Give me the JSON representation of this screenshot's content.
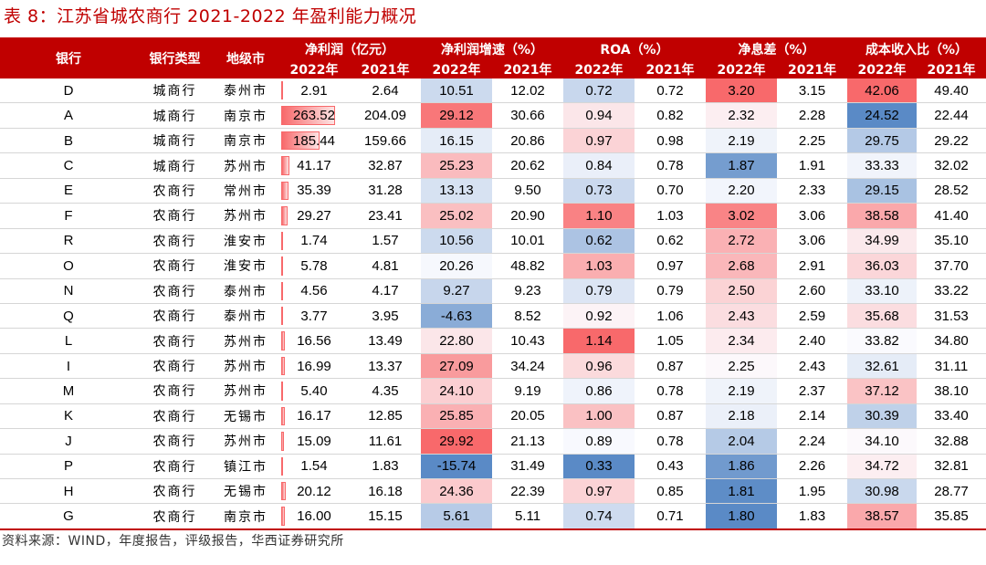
{
  "title": "表 8：江苏省城农商行 2021-2022 年盈利能力概况",
  "header": {
    "bank": "银行",
    "type": "银行类型",
    "city": "地级市",
    "groups": [
      "净利润（亿元）",
      "净利润增速（%）",
      "ROA（%）",
      "净息差（%）",
      "成本收入比（%）"
    ],
    "years": [
      "2022年",
      "2021年"
    ]
  },
  "rows": [
    {
      "bank": "D",
      "type": "城商行",
      "city": "泰州市",
      "np22": "2.91",
      "np21": "2.64",
      "g22": "10.51",
      "g21": "12.02",
      "roa22": "0.72",
      "roa21": "0.72",
      "nim22": "3.20",
      "nim21": "3.15",
      "cir22": "42.06",
      "cir21": "49.40"
    },
    {
      "bank": "A",
      "type": "城商行",
      "city": "南京市",
      "np22": "263.52",
      "np21": "204.09",
      "g22": "29.12",
      "g21": "30.66",
      "roa22": "0.94",
      "roa21": "0.82",
      "nim22": "2.32",
      "nim21": "2.28",
      "cir22": "24.52",
      "cir21": "22.44"
    },
    {
      "bank": "B",
      "type": "城商行",
      "city": "南京市",
      "np22": "185.44",
      "np21": "159.66",
      "g22": "16.15",
      "g21": "20.86",
      "roa22": "0.97",
      "roa21": "0.98",
      "nim22": "2.19",
      "nim21": "2.25",
      "cir22": "29.75",
      "cir21": "29.22"
    },
    {
      "bank": "C",
      "type": "城商行",
      "city": "苏州市",
      "np22": "41.17",
      "np21": "32.87",
      "g22": "25.23",
      "g21": "20.62",
      "roa22": "0.84",
      "roa21": "0.78",
      "nim22": "1.87",
      "nim21": "1.91",
      "cir22": "33.33",
      "cir21": "32.02"
    },
    {
      "bank": "E",
      "type": "农商行",
      "city": "常州市",
      "np22": "35.39",
      "np21": "31.28",
      "g22": "13.13",
      "g21": "9.50",
      "roa22": "0.73",
      "roa21": "0.70",
      "nim22": "2.20",
      "nim21": "2.33",
      "cir22": "29.15",
      "cir21": "28.52"
    },
    {
      "bank": "F",
      "type": "农商行",
      "city": "苏州市",
      "np22": "29.27",
      "np21": "23.41",
      "g22": "25.02",
      "g21": "20.90",
      "roa22": "1.10",
      "roa21": "1.03",
      "nim22": "3.02",
      "nim21": "3.06",
      "cir22": "38.58",
      "cir21": "41.40"
    },
    {
      "bank": "R",
      "type": "农商行",
      "city": "淮安市",
      "np22": "1.74",
      "np21": "1.57",
      "g22": "10.56",
      "g21": "10.01",
      "roa22": "0.62",
      "roa21": "0.62",
      "nim22": "2.72",
      "nim21": "3.06",
      "cir22": "34.99",
      "cir21": "35.10"
    },
    {
      "bank": "O",
      "type": "农商行",
      "city": "淮安市",
      "np22": "5.78",
      "np21": "4.81",
      "g22": "20.26",
      "g21": "48.82",
      "roa22": "1.03",
      "roa21": "0.97",
      "nim22": "2.68",
      "nim21": "2.91",
      "cir22": "36.03",
      "cir21": "37.70"
    },
    {
      "bank": "N",
      "type": "农商行",
      "city": "泰州市",
      "np22": "4.56",
      "np21": "4.17",
      "g22": "9.27",
      "g21": "9.23",
      "roa22": "0.79",
      "roa21": "0.79",
      "nim22": "2.50",
      "nim21": "2.60",
      "cir22": "33.10",
      "cir21": "33.22"
    },
    {
      "bank": "Q",
      "type": "农商行",
      "city": "泰州市",
      "np22": "3.77",
      "np21": "3.95",
      "g22": "-4.63",
      "g21": "8.52",
      "roa22": "0.92",
      "roa21": "1.06",
      "nim22": "2.43",
      "nim21": "2.59",
      "cir22": "35.68",
      "cir21": "31.53"
    },
    {
      "bank": "L",
      "type": "农商行",
      "city": "苏州市",
      "np22": "16.56",
      "np21": "13.49",
      "g22": "22.80",
      "g21": "10.43",
      "roa22": "1.14",
      "roa21": "1.05",
      "nim22": "2.34",
      "nim21": "2.40",
      "cir22": "33.82",
      "cir21": "34.80"
    },
    {
      "bank": "I",
      "type": "农商行",
      "city": "苏州市",
      "np22": "16.99",
      "np21": "13.37",
      "g22": "27.09",
      "g21": "34.24",
      "roa22": "0.96",
      "roa21": "0.87",
      "nim22": "2.25",
      "nim21": "2.43",
      "cir22": "32.61",
      "cir21": "31.11"
    },
    {
      "bank": "M",
      "type": "农商行",
      "city": "苏州市",
      "np22": "5.40",
      "np21": "4.35",
      "g22": "24.10",
      "g21": "9.19",
      "roa22": "0.86",
      "roa21": "0.78",
      "nim22": "2.19",
      "nim21": "2.37",
      "cir22": "37.12",
      "cir21": "38.10"
    },
    {
      "bank": "K",
      "type": "农商行",
      "city": "无锡市",
      "np22": "16.17",
      "np21": "12.85",
      "g22": "25.85",
      "g21": "20.05",
      "roa22": "1.00",
      "roa21": "0.87",
      "nim22": "2.18",
      "nim21": "2.14",
      "cir22": "30.39",
      "cir21": "33.40"
    },
    {
      "bank": "J",
      "type": "农商行",
      "city": "苏州市",
      "np22": "15.09",
      "np21": "11.61",
      "g22": "29.92",
      "g21": "21.13",
      "roa22": "0.89",
      "roa21": "0.78",
      "nim22": "2.04",
      "nim21": "2.24",
      "cir22": "34.10",
      "cir21": "32.88"
    },
    {
      "bank": "P",
      "type": "农商行",
      "city": "镇江市",
      "np22": "1.54",
      "np21": "1.83",
      "g22": "-15.74",
      "g21": "31.49",
      "roa22": "0.33",
      "roa21": "0.43",
      "nim22": "1.86",
      "nim21": "2.26",
      "cir22": "34.72",
      "cir21": "32.81"
    },
    {
      "bank": "H",
      "type": "农商行",
      "city": "无锡市",
      "np22": "20.12",
      "np21": "16.18",
      "g22": "24.36",
      "g21": "22.39",
      "roa22": "0.97",
      "roa21": "0.85",
      "nim22": "1.81",
      "nim21": "1.95",
      "cir22": "30.98",
      "cir21": "28.77"
    },
    {
      "bank": "G",
      "type": "农商行",
      "city": "南京市",
      "np22": "16.00",
      "np21": "15.15",
      "g22": "5.61",
      "g21": "5.11",
      "roa22": "0.74",
      "roa21": "0.71",
      "nim22": "1.80",
      "nim21": "1.83",
      "cir22": "38.57",
      "cir21": "35.85"
    }
  ],
  "colors": {
    "header_bg": "#c00000",
    "scale_low": "#5a8ac6",
    "scale_mid": "#fcfcff",
    "scale_high": "#f8696b",
    "databar": "#f8696b"
  },
  "source": "资料来源：WIND，年度报告，评级报告，华西证券研究所"
}
